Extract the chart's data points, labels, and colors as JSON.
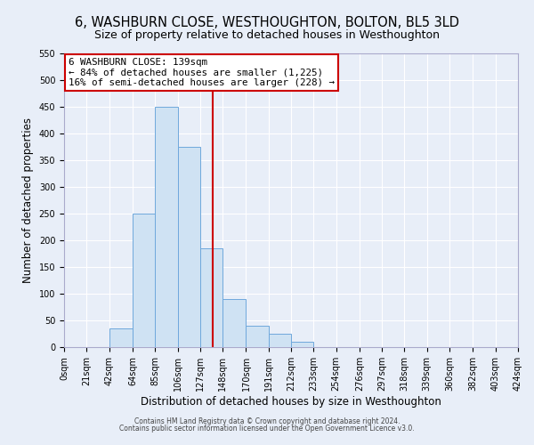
{
  "title": "6, WASHBURN CLOSE, WESTHOUGHTON, BOLTON, BL5 3LD",
  "subtitle": "Size of property relative to detached houses in Westhoughton",
  "xlabel": "Distribution of detached houses by size in Westhoughton",
  "ylabel": "Number of detached properties",
  "bin_edges": [
    0,
    21,
    42,
    64,
    85,
    106,
    127,
    148,
    170,
    191,
    212,
    233,
    254,
    276,
    297,
    318,
    339,
    360,
    382,
    403,
    424
  ],
  "bin_labels": [
    "0sqm",
    "21sqm",
    "42sqm",
    "64sqm",
    "85sqm",
    "106sqm",
    "127sqm",
    "148sqm",
    "170sqm",
    "191sqm",
    "212sqm",
    "233sqm",
    "254sqm",
    "276sqm",
    "297sqm",
    "318sqm",
    "339sqm",
    "360sqm",
    "382sqm",
    "403sqm",
    "424sqm"
  ],
  "bar_heights": [
    0,
    0,
    35,
    250,
    450,
    375,
    185,
    90,
    40,
    25,
    10,
    0,
    0,
    0,
    0,
    0,
    0,
    0,
    0,
    0
  ],
  "bar_color": "#cfe2f3",
  "bar_edge_color": "#6fa8dc",
  "vline_x": 139,
  "vline_color": "#cc0000",
  "ylim": [
    0,
    550
  ],
  "yticks": [
    0,
    50,
    100,
    150,
    200,
    250,
    300,
    350,
    400,
    450,
    500,
    550
  ],
  "annotation_title": "6 WASHBURN CLOSE: 139sqm",
  "annotation_line1": "← 84% of detached houses are smaller (1,225)",
  "annotation_line2": "16% of semi-detached houses are larger (228) →",
  "annotation_box_color": "#ffffff",
  "annotation_box_edge_color": "#cc0000",
  "footer_line1": "Contains HM Land Registry data © Crown copyright and database right 2024.",
  "footer_line2": "Contains public sector information licensed under the Open Government Licence v3.0.",
  "bg_color": "#e8eef8",
  "grid_color": "#ffffff",
  "title_fontsize": 10.5,
  "subtitle_fontsize": 9,
  "axis_label_fontsize": 8.5,
  "tick_fontsize": 7,
  "footer_fontsize": 5.5
}
